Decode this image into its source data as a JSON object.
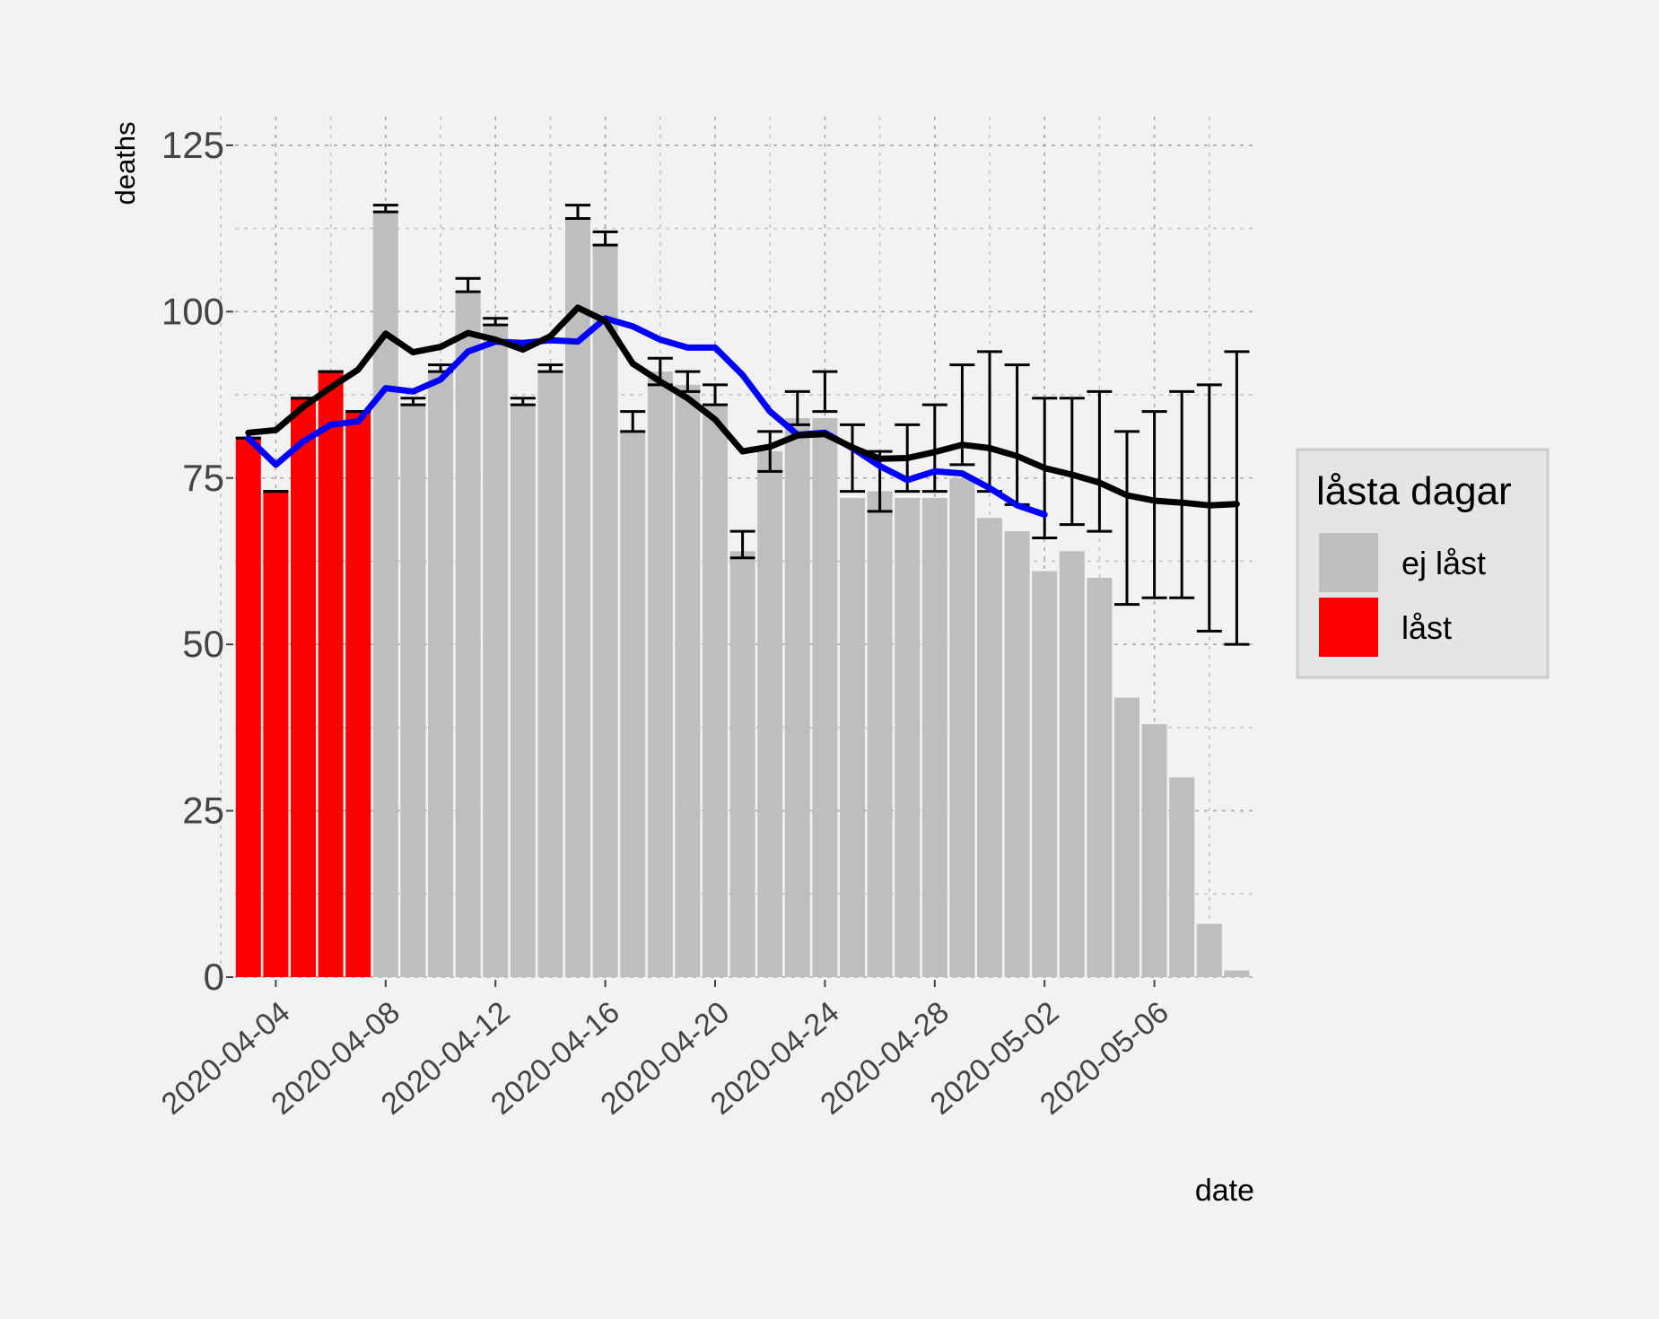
{
  "chart_data": {
    "type": "bar",
    "xlabel": "date",
    "ylabel": "deaths",
    "ylim": [
      0,
      125
    ],
    "yticks": [
      0,
      25,
      50,
      75,
      100,
      125
    ],
    "grid": true,
    "legend_position": "right",
    "x_tick_labels": [
      "2020-04-04",
      "2020-04-08",
      "2020-04-12",
      "2020-04-16",
      "2020-04-20",
      "2020-04-24",
      "2020-04-28",
      "2020-05-02",
      "2020-05-06"
    ],
    "x": [
      "2020-04-03",
      "2020-04-04",
      "2020-04-05",
      "2020-04-06",
      "2020-04-07",
      "2020-04-08",
      "2020-04-09",
      "2020-04-10",
      "2020-04-11",
      "2020-04-12",
      "2020-04-13",
      "2020-04-14",
      "2020-04-15",
      "2020-04-16",
      "2020-04-17",
      "2020-04-18",
      "2020-04-19",
      "2020-04-20",
      "2020-04-21",
      "2020-04-22",
      "2020-04-23",
      "2020-04-24",
      "2020-04-25",
      "2020-04-26",
      "2020-04-27",
      "2020-04-28",
      "2020-04-29",
      "2020-04-30",
      "2020-05-01",
      "2020-05-02",
      "2020-05-03",
      "2020-05-04",
      "2020-05-05",
      "2020-05-06",
      "2020-05-07",
      "2020-05-08",
      "2020-05-09"
    ],
    "bars": {
      "values": [
        81,
        73,
        87,
        91,
        85,
        115,
        86,
        91,
        103,
        98,
        86,
        91,
        114,
        110,
        82,
        91,
        89,
        86,
        64,
        79,
        84,
        84,
        72,
        73,
        72,
        72,
        75,
        69,
        67,
        61,
        64,
        60,
        42,
        38,
        30,
        8,
        1
      ],
      "locked": [
        true,
        true,
        true,
        true,
        true,
        false,
        false,
        false,
        false,
        false,
        false,
        false,
        false,
        false,
        false,
        false,
        false,
        false,
        false,
        false,
        false,
        false,
        false,
        false,
        false,
        false,
        false,
        false,
        false,
        false,
        false,
        false,
        false,
        false,
        false,
        false,
        false
      ]
    },
    "legend": {
      "title": "låsta dagar",
      "items": [
        {
          "label": "ej låst",
          "color": "#bebebe"
        },
        {
          "label": "låst",
          "color": "#ff0000"
        }
      ]
    },
    "error_bars": [
      {
        "x": "2020-04-03",
        "low": 81,
        "high": 81
      },
      {
        "x": "2020-04-04",
        "low": 73,
        "high": 73
      },
      {
        "x": "2020-04-05",
        "low": 87,
        "high": 87
      },
      {
        "x": "2020-04-06",
        "low": 91,
        "high": 91
      },
      {
        "x": "2020-04-07",
        "low": 85,
        "high": 85
      },
      {
        "x": "2020-04-08",
        "low": 115,
        "high": 116
      },
      {
        "x": "2020-04-09",
        "low": 86,
        "high": 87
      },
      {
        "x": "2020-04-10",
        "low": 91,
        "high": 92
      },
      {
        "x": "2020-04-11",
        "low": 103,
        "high": 105
      },
      {
        "x": "2020-04-12",
        "low": 98,
        "high": 99
      },
      {
        "x": "2020-04-13",
        "low": 86,
        "high": 87
      },
      {
        "x": "2020-04-14",
        "low": 91,
        "high": 92
      },
      {
        "x": "2020-04-15",
        "low": 114,
        "high": 116
      },
      {
        "x": "2020-04-16",
        "low": 110,
        "high": 112
      },
      {
        "x": "2020-04-17",
        "low": 82,
        "high": 85
      },
      {
        "x": "2020-04-18",
        "low": 89,
        "high": 93
      },
      {
        "x": "2020-04-19",
        "low": 88,
        "high": 91
      },
      {
        "x": "2020-04-20",
        "low": 86,
        "high": 89
      },
      {
        "x": "2020-04-21",
        "low": 63,
        "high": 67
      },
      {
        "x": "2020-04-22",
        "low": 76,
        "high": 82
      },
      {
        "x": "2020-04-23",
        "low": 83,
        "high": 88
      },
      {
        "x": "2020-04-24",
        "low": 85,
        "high": 91
      },
      {
        "x": "2020-04-25",
        "low": 73,
        "high": 83
      },
      {
        "x": "2020-04-26",
        "low": 70,
        "high": 79
      },
      {
        "x": "2020-04-27",
        "low": 73,
        "high": 83
      },
      {
        "x": "2020-04-28",
        "low": 73,
        "high": 86
      },
      {
        "x": "2020-04-29",
        "low": 77,
        "high": 92
      },
      {
        "x": "2020-04-30",
        "low": 73,
        "high": 94
      },
      {
        "x": "2020-05-01",
        "low": 71,
        "high": 92
      },
      {
        "x": "2020-05-02",
        "low": 66,
        "high": 87
      },
      {
        "x": "2020-05-03",
        "low": 68,
        "high": 87
      },
      {
        "x": "2020-05-04",
        "low": 67,
        "high": 88
      },
      {
        "x": "2020-05-05",
        "low": 56,
        "high": 82
      },
      {
        "x": "2020-05-06",
        "low": 57,
        "high": 85
      },
      {
        "x": "2020-05-07",
        "low": 57,
        "high": 88
      },
      {
        "x": "2020-05-08",
        "low": 52,
        "high": 89
      },
      {
        "x": "2020-05-09",
        "low": 50,
        "high": 94
      }
    ],
    "series": [
      {
        "color": "#0000ff",
        "x": [
          "2020-04-03",
          "2020-04-04",
          "2020-04-05",
          "2020-04-06",
          "2020-04-07",
          "2020-04-08",
          "2020-04-09",
          "2020-04-10",
          "2020-04-11",
          "2020-04-12",
          "2020-04-13",
          "2020-04-14",
          "2020-04-15",
          "2020-04-16",
          "2020-04-17",
          "2020-04-18",
          "2020-04-19",
          "2020-04-20",
          "2020-04-21",
          "2020-04-22",
          "2020-04-23",
          "2020-04-24",
          "2020-04-25",
          "2020-04-26",
          "2020-04-27",
          "2020-04-28",
          "2020-04-29",
          "2020-04-30",
          "2020-05-01",
          "2020-05-02"
        ],
        "values": [
          81,
          77,
          80.5,
          83,
          83.5,
          88.5,
          88,
          89.8,
          94,
          95.5,
          95.3,
          95.7,
          95.5,
          99,
          97.8,
          95.8,
          94.6,
          94.6,
          90.5,
          85,
          81.5,
          81.8,
          79.5,
          76.8,
          74.7,
          76,
          75.7,
          73.5,
          70.9,
          69.5
        ]
      },
      {
        "color": "#000000",
        "x": [
          "2020-04-03",
          "2020-04-04",
          "2020-04-05",
          "2020-04-06",
          "2020-04-07",
          "2020-04-08",
          "2020-04-09",
          "2020-04-10",
          "2020-04-11",
          "2020-04-12",
          "2020-04-13",
          "2020-04-14",
          "2020-04-15",
          "2020-04-16",
          "2020-04-17",
          "2020-04-18",
          "2020-04-19",
          "2020-04-20",
          "2020-04-21",
          "2020-04-22",
          "2020-04-23",
          "2020-04-24",
          "2020-04-25",
          "2020-04-26",
          "2020-04-27",
          "2020-04-28",
          "2020-04-29",
          "2020-04-30",
          "2020-05-01",
          "2020-05-02",
          "2020-05-03",
          "2020-05-04",
          "2020-05-05",
          "2020-05-06",
          "2020-05-07",
          "2020-05-08",
          "2020-05-09"
        ],
        "values": [
          81.8,
          82.2,
          85.7,
          88.6,
          91.3,
          96.7,
          93.9,
          94.7,
          96.8,
          95.8,
          94.3,
          96.3,
          100.6,
          98.6,
          92.2,
          89.5,
          87,
          83.8,
          79,
          79.7,
          81.4,
          81.6,
          79.6,
          77.9,
          78,
          78.9,
          80,
          79.5,
          78.3,
          76.5,
          75.5,
          74.3,
          72.4,
          71.6,
          71.3,
          70.9,
          71.1
        ]
      }
    ]
  }
}
